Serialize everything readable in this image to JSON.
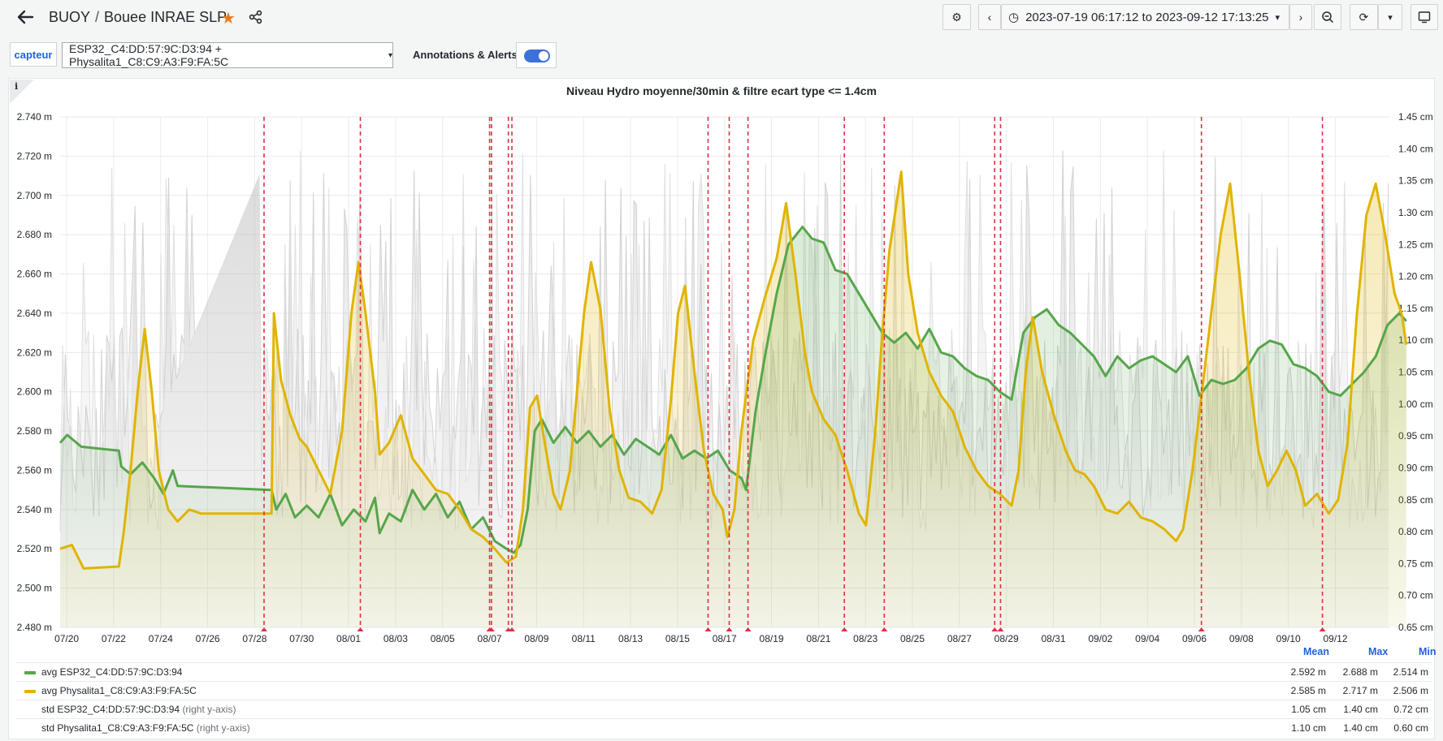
{
  "header": {
    "folder": "BUOY",
    "separator": "/",
    "dashboard_title": "Bouee INRAE SLP",
    "time_range": "2023-07-19 06:17:12 to 2023-09-12 17:13:25",
    "icons": [
      "arrow-left-icon",
      "star-icon",
      "share-icon",
      "gear-icon",
      "chevron-left-icon",
      "clock-icon",
      "chevron-down-icon",
      "chevron-right-icon",
      "zoom-out-icon",
      "refresh-icon",
      "monitor-icon"
    ]
  },
  "variables": {
    "label": "capteur",
    "value": "ESP32_C4:DD:57:9C:D3:94 + Physalita1_C8:C9:A3:F9:FA:5C",
    "annotations_label": "Annotations & Alerts",
    "annotations_enabled": true
  },
  "panel": {
    "info": "i",
    "title": "Niveau Hydro moyenne/30min & filtre ecart type <= 1.4cm"
  },
  "chart_data": {
    "type": "line",
    "title": "Niveau Hydro moyenne/30min & filtre ecart type <= 1.4cm",
    "x_start": "2023-07-19",
    "x_end": "2023-09-12",
    "x_ticks": [
      "07/20",
      "07/22",
      "07/24",
      "07/26",
      "07/28",
      "07/30",
      "08/01",
      "08/03",
      "08/05",
      "08/07",
      "08/09",
      "08/11",
      "08/13",
      "08/15",
      "08/17",
      "08/19",
      "08/21",
      "08/23",
      "08/25",
      "08/27",
      "08/29",
      "08/31",
      "09/02",
      "09/04",
      "09/06",
      "09/08",
      "09/10",
      "09/12"
    ],
    "y_left": {
      "unit": "m",
      "range": [
        2.48,
        2.74
      ],
      "ticks": [
        "2.740 m",
        "2.720 m",
        "2.700 m",
        "2.680 m",
        "2.660 m",
        "2.640 m",
        "2.620 m",
        "2.600 m",
        "2.580 m",
        "2.560 m",
        "2.540 m",
        "2.520 m",
        "2.500 m",
        "2.480 m"
      ]
    },
    "y_right": {
      "unit": "cm",
      "range": [
        0.65,
        1.45
      ],
      "ticks": [
        "1.45 cm",
        "1.40 cm",
        "1.35 cm",
        "1.30 cm",
        "1.25 cm",
        "1.20 cm",
        "1.15 cm",
        "1.10 cm",
        "1.05 cm",
        "1.00 cm",
        "0.95 cm",
        "0.90 cm",
        "0.85 cm",
        "0.80 cm",
        "0.75 cm",
        "0.70 cm",
        "0.65 cm"
      ]
    },
    "grid": true,
    "legend_position": "bottom",
    "annotations_days": [
      9.4,
      13.5,
      19.0,
      19.08,
      19.8,
      19.95,
      28.3,
      29.2,
      30.0,
      34.1,
      35.8,
      40.5,
      40.75,
      49.3,
      54.45
    ],
    "series": [
      {
        "name": "avg ESP32_C4:DD:57:9C:D3:94",
        "axis": "left",
        "color": "#56a64b",
        "points": [
          [
            0,
            2.574
          ],
          [
            0.3,
            2.578
          ],
          [
            0.9,
            2.572
          ],
          [
            2.5,
            2.57
          ],
          [
            2.6,
            2.562
          ],
          [
            3.0,
            2.558
          ],
          [
            3.5,
            2.564
          ],
          [
            4.0,
            2.556
          ],
          [
            4.4,
            2.548
          ],
          [
            4.8,
            2.56
          ],
          [
            5.0,
            2.552
          ],
          [
            9.0,
            2.55
          ],
          [
            9.2,
            2.54
          ],
          [
            9.6,
            2.548
          ],
          [
            10.0,
            2.536
          ],
          [
            10.5,
            2.542
          ],
          [
            11.0,
            2.536
          ],
          [
            11.5,
            2.548
          ],
          [
            12.0,
            2.532
          ],
          [
            12.5,
            2.54
          ],
          [
            13.0,
            2.534
          ],
          [
            13.4,
            2.546
          ],
          [
            13.6,
            2.528
          ],
          [
            14.0,
            2.538
          ],
          [
            14.5,
            2.534
          ],
          [
            15.0,
            2.55
          ],
          [
            15.5,
            2.54
          ],
          [
            16.0,
            2.548
          ],
          [
            16.5,
            2.536
          ],
          [
            17.0,
            2.544
          ],
          [
            17.5,
            2.53
          ],
          [
            18.0,
            2.536
          ],
          [
            18.5,
            2.524
          ],
          [
            19.0,
            2.52
          ],
          [
            19.3,
            2.518
          ],
          [
            19.6,
            2.522
          ],
          [
            19.9,
            2.54
          ],
          [
            20.2,
            2.58
          ],
          [
            20.5,
            2.586
          ],
          [
            21.0,
            2.574
          ],
          [
            21.5,
            2.582
          ],
          [
            22.0,
            2.574
          ],
          [
            22.5,
            2.58
          ],
          [
            23.0,
            2.572
          ],
          [
            23.5,
            2.578
          ],
          [
            24.0,
            2.568
          ],
          [
            24.5,
            2.576
          ],
          [
            25.0,
            2.572
          ],
          [
            25.5,
            2.568
          ],
          [
            26.0,
            2.578
          ],
          [
            26.5,
            2.566
          ],
          [
            27.0,
            2.57
          ],
          [
            27.5,
            2.566
          ],
          [
            28.0,
            2.57
          ],
          [
            28.5,
            2.56
          ],
          [
            29.0,
            2.556
          ],
          [
            29.2,
            2.55
          ],
          [
            29.6,
            2.59
          ],
          [
            30.0,
            2.618
          ],
          [
            30.5,
            2.65
          ],
          [
            31.0,
            2.675
          ],
          [
            31.6,
            2.684
          ],
          [
            32.0,
            2.678
          ],
          [
            32.5,
            2.676
          ],
          [
            33.0,
            2.662
          ],
          [
            33.5,
            2.66
          ],
          [
            34.0,
            2.65
          ],
          [
            34.5,
            2.64
          ],
          [
            35.0,
            2.63
          ],
          [
            35.5,
            2.625
          ],
          [
            36.0,
            2.63
          ],
          [
            36.5,
            2.622
          ],
          [
            37.0,
            2.632
          ],
          [
            37.5,
            2.62
          ],
          [
            38.0,
            2.618
          ],
          [
            38.5,
            2.612
          ],
          [
            39.0,
            2.608
          ],
          [
            39.5,
            2.606
          ],
          [
            40.0,
            2.6
          ],
          [
            40.5,
            2.596
          ],
          [
            41.0,
            2.63
          ],
          [
            41.5,
            2.638
          ],
          [
            42.0,
            2.642
          ],
          [
            42.5,
            2.634
          ],
          [
            43.0,
            2.63
          ],
          [
            43.5,
            2.624
          ],
          [
            44.0,
            2.618
          ],
          [
            44.5,
            2.608
          ],
          [
            45.0,
            2.618
          ],
          [
            45.5,
            2.612
          ],
          [
            46.0,
            2.616
          ],
          [
            46.5,
            2.618
          ],
          [
            47.0,
            2.614
          ],
          [
            47.5,
            2.61
          ],
          [
            48.0,
            2.618
          ],
          [
            48.5,
            2.598
          ],
          [
            49.0,
            2.606
          ],
          [
            49.5,
            2.604
          ],
          [
            50.0,
            2.606
          ],
          [
            50.5,
            2.612
          ],
          [
            51.0,
            2.622
          ],
          [
            51.5,
            2.626
          ],
          [
            52.0,
            2.624
          ],
          [
            52.5,
            2.614
          ],
          [
            53.0,
            2.612
          ],
          [
            53.5,
            2.608
          ],
          [
            54.0,
            2.6
          ],
          [
            54.5,
            2.598
          ],
          [
            55.0,
            2.604
          ],
          [
            55.5,
            2.61
          ],
          [
            56.0,
            2.618
          ],
          [
            56.5,
            2.634
          ],
          [
            57.0,
            2.64
          ],
          [
            57.3,
            2.636
          ]
        ]
      },
      {
        "name": "avg Physalita1_C8:C9:A3:F9:FA:5C",
        "axis": "left",
        "color": "#e0b400",
        "points": [
          [
            0,
            2.52
          ],
          [
            0.5,
            2.522
          ],
          [
            1.0,
            2.51
          ],
          [
            2.5,
            2.511
          ],
          [
            2.7,
            2.528
          ],
          [
            3.0,
            2.56
          ],
          [
            3.3,
            2.6
          ],
          [
            3.6,
            2.632
          ],
          [
            3.9,
            2.6
          ],
          [
            4.2,
            2.56
          ],
          [
            4.6,
            2.54
          ],
          [
            5.0,
            2.534
          ],
          [
            5.5,
            2.54
          ],
          [
            6.0,
            2.538
          ],
          [
            9.0,
            2.538
          ],
          [
            9.1,
            2.64
          ],
          [
            9.4,
            2.606
          ],
          [
            9.8,
            2.588
          ],
          [
            10.2,
            2.576
          ],
          [
            10.5,
            2.572
          ],
          [
            11.0,
            2.56
          ],
          [
            11.5,
            2.548
          ],
          [
            12.0,
            2.58
          ],
          [
            12.4,
            2.64
          ],
          [
            12.7,
            2.666
          ],
          [
            13.0,
            2.64
          ],
          [
            13.4,
            2.6
          ],
          [
            13.6,
            2.568
          ],
          [
            14.0,
            2.574
          ],
          [
            14.5,
            2.588
          ],
          [
            15.0,
            2.566
          ],
          [
            15.5,
            2.558
          ],
          [
            16.0,
            2.55
          ],
          [
            16.5,
            2.548
          ],
          [
            17.0,
            2.54
          ],
          [
            17.5,
            2.53
          ],
          [
            18.0,
            2.526
          ],
          [
            18.5,
            2.52
          ],
          [
            19.0,
            2.513
          ],
          [
            19.4,
            2.516
          ],
          [
            19.7,
            2.54
          ],
          [
            20.0,
            2.592
          ],
          [
            20.3,
            2.598
          ],
          [
            20.6,
            2.576
          ],
          [
            21.0,
            2.548
          ],
          [
            21.3,
            2.54
          ],
          [
            21.7,
            2.56
          ],
          [
            22.0,
            2.6
          ],
          [
            22.3,
            2.64
          ],
          [
            22.6,
            2.666
          ],
          [
            23.0,
            2.642
          ],
          [
            23.4,
            2.59
          ],
          [
            23.8,
            2.56
          ],
          [
            24.2,
            2.546
          ],
          [
            24.7,
            2.544
          ],
          [
            25.2,
            2.538
          ],
          [
            25.6,
            2.55
          ],
          [
            26.0,
            2.596
          ],
          [
            26.3,
            2.64
          ],
          [
            26.6,
            2.654
          ],
          [
            27.0,
            2.61
          ],
          [
            27.4,
            2.57
          ],
          [
            27.8,
            2.548
          ],
          [
            28.2,
            2.54
          ],
          [
            28.4,
            2.526
          ],
          [
            28.7,
            2.54
          ],
          [
            29.0,
            2.58
          ],
          [
            29.5,
            2.626
          ],
          [
            30.0,
            2.648
          ],
          [
            30.5,
            2.668
          ],
          [
            30.9,
            2.696
          ],
          [
            31.3,
            2.66
          ],
          [
            31.7,
            2.62
          ],
          [
            32.0,
            2.6
          ],
          [
            32.5,
            2.586
          ],
          [
            33.0,
            2.578
          ],
          [
            33.5,
            2.56
          ],
          [
            34.0,
            2.538
          ],
          [
            34.3,
            2.532
          ],
          [
            34.7,
            2.58
          ],
          [
            35.0,
            2.63
          ],
          [
            35.3,
            2.672
          ],
          [
            35.8,
            2.712
          ],
          [
            36.1,
            2.66
          ],
          [
            36.5,
            2.63
          ],
          [
            37.0,
            2.61
          ],
          [
            37.5,
            2.598
          ],
          [
            38.0,
            2.59
          ],
          [
            38.5,
            2.572
          ],
          [
            39.0,
            2.56
          ],
          [
            39.5,
            2.552
          ],
          [
            40.0,
            2.548
          ],
          [
            40.5,
            2.542
          ],
          [
            40.8,
            2.56
          ],
          [
            41.1,
            2.61
          ],
          [
            41.4,
            2.638
          ],
          [
            41.8,
            2.61
          ],
          [
            42.3,
            2.588
          ],
          [
            42.8,
            2.57
          ],
          [
            43.2,
            2.56
          ],
          [
            43.6,
            2.558
          ],
          [
            44.0,
            2.552
          ],
          [
            44.5,
            2.54
          ],
          [
            45.0,
            2.538
          ],
          [
            45.5,
            2.544
          ],
          [
            46.0,
            2.536
          ],
          [
            46.5,
            2.534
          ],
          [
            47.0,
            2.53
          ],
          [
            47.5,
            2.524
          ],
          [
            47.8,
            2.53
          ],
          [
            48.2,
            2.56
          ],
          [
            48.6,
            2.6
          ],
          [
            49.0,
            2.64
          ],
          [
            49.4,
            2.68
          ],
          [
            49.8,
            2.706
          ],
          [
            50.2,
            2.66
          ],
          [
            50.6,
            2.61
          ],
          [
            51.0,
            2.57
          ],
          [
            51.4,
            2.552
          ],
          [
            51.8,
            2.56
          ],
          [
            52.2,
            2.57
          ],
          [
            52.6,
            2.56
          ],
          [
            53.0,
            2.542
          ],
          [
            53.5,
            2.548
          ],
          [
            54.0,
            2.538
          ],
          [
            54.4,
            2.545
          ],
          [
            54.8,
            2.574
          ],
          [
            55.2,
            2.64
          ],
          [
            55.6,
            2.69
          ],
          [
            56.0,
            2.706
          ],
          [
            56.4,
            2.68
          ],
          [
            56.8,
            2.65
          ],
          [
            57.1,
            2.64
          ],
          [
            57.3,
            2.624
          ]
        ]
      },
      {
        "name": "std ESP32_C4:DD:57:9C:D3:94",
        "axis": "right",
        "axis_note": "(right y-axis)",
        "color": "#c9c9c9"
      },
      {
        "name": "std Physalita1_C8:C9:A3:F9:FA:5C",
        "axis": "right",
        "axis_note": "(right y-axis)",
        "color": "#dcdcdc"
      }
    ]
  },
  "legend": {
    "headers": [
      "Mean",
      "Max",
      "Min"
    ],
    "rows": [
      {
        "name": "avg ESP32_C4:DD:57:9C:D3:94",
        "note": "",
        "color": "#56a64b",
        "mean": "2.592 m",
        "max": "2.688 m",
        "min": "2.514 m"
      },
      {
        "name": "avg Physalita1_C8:C9:A3:F9:FA:5C",
        "note": "",
        "color": "#e0b400",
        "mean": "2.585 m",
        "max": "2.717 m",
        "min": "2.506 m"
      },
      {
        "name": "std ESP32_C4:DD:57:9C:D3:94",
        "note": "(right y-axis)",
        "color": "",
        "mean": "1.05 cm",
        "max": "1.40 cm",
        "min": "0.72 cm"
      },
      {
        "name": "std Physalita1_C8:C9:A3:F9:FA:5C",
        "note": "(right y-axis)",
        "color": "",
        "mean": "1.10 cm",
        "max": "1.40 cm",
        "min": "0.60 cm"
      }
    ]
  }
}
